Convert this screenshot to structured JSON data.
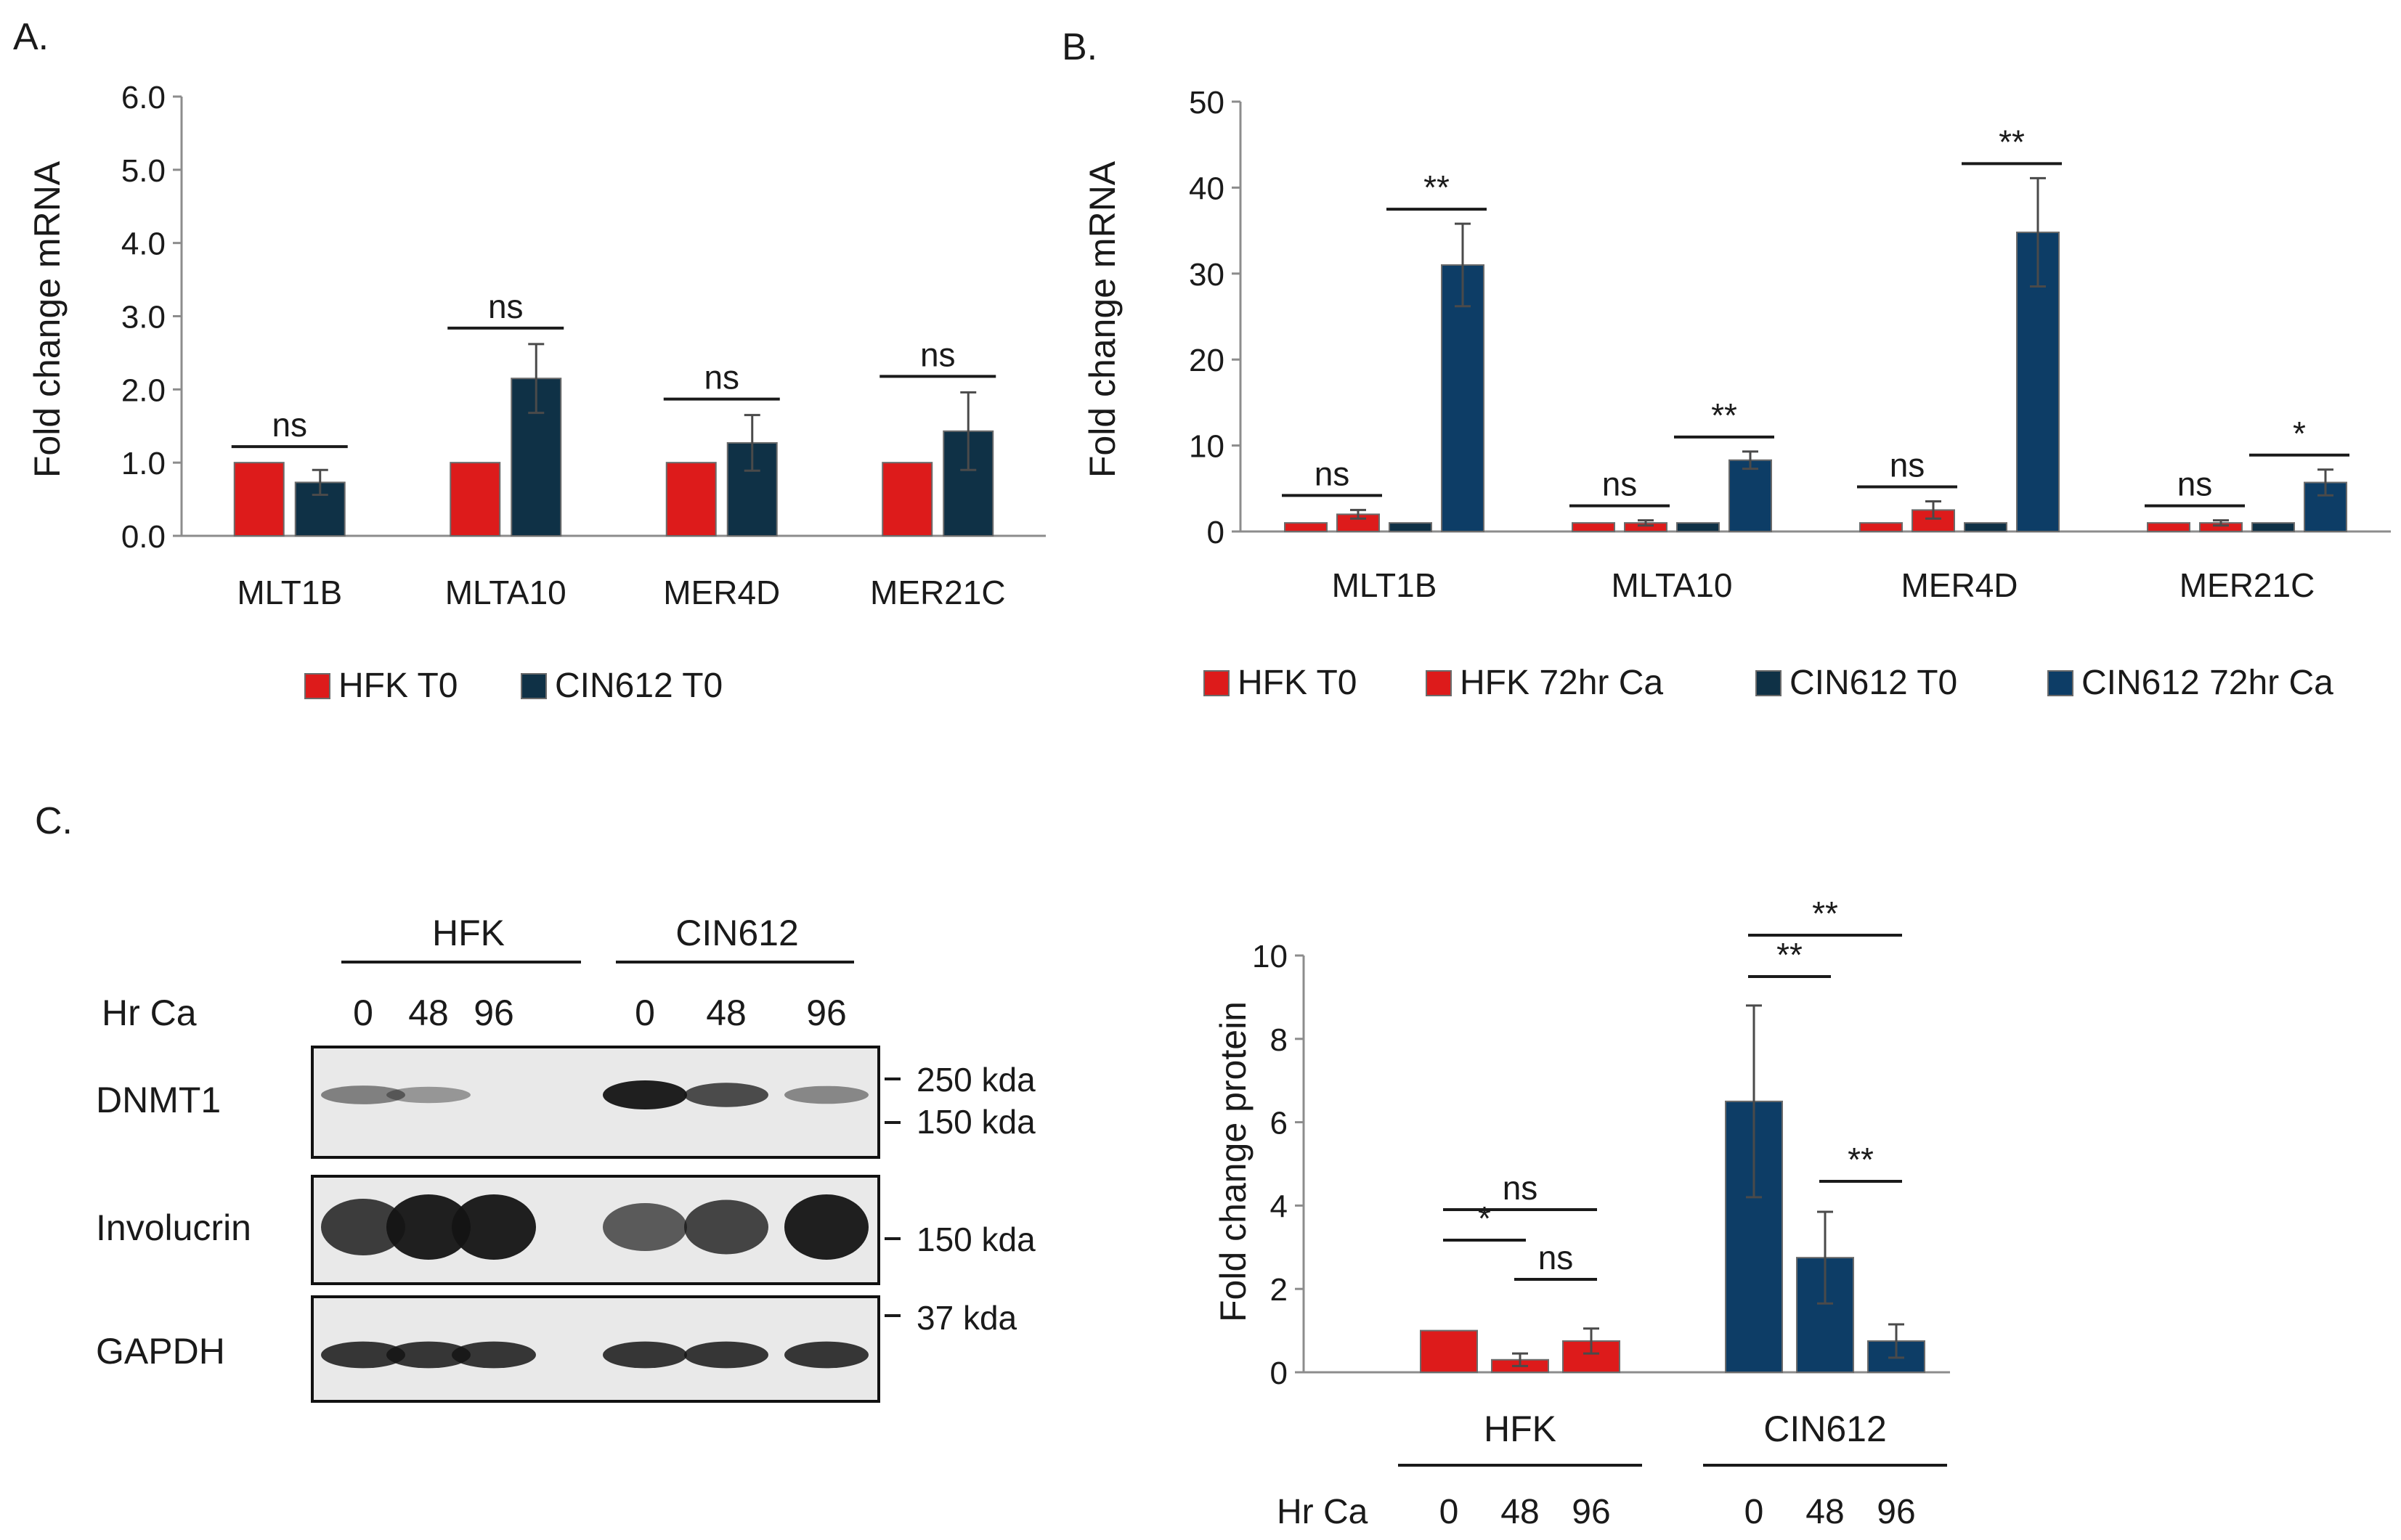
{
  "colors": {
    "red": "#dd1b1b",
    "dark_teal": "#0f3146",
    "navy": "#0d3d66",
    "teal": "#2f5f6f",
    "error_bar": "#4a4a4a",
    "axis": "#8c8c8c",
    "blot_bg": "#e9e9e9",
    "band": "#141414"
  },
  "panels": {
    "a_label": "A.",
    "b_label": "B.",
    "c_label": "C."
  },
  "chart_data": [
    {
      "id": "A",
      "type": "bar",
      "ylabel": "Fold change mRNA",
      "ylim": [
        0,
        6
      ],
      "yticks": [
        "0.0",
        "1.0",
        "2.0",
        "3.0",
        "4.0",
        "5.0",
        "6.0"
      ],
      "categories": [
        "MLT1B",
        "MLTA10",
        "MER4D",
        "MER21C"
      ],
      "series": [
        {
          "name": "HFK T0",
          "values": [
            1.0,
            1.0,
            1.0,
            1.0
          ],
          "errors": [
            0.0,
            0.0,
            0.0,
            0.0
          ]
        },
        {
          "name": "CIN612 T0",
          "values": [
            0.73,
            2.15,
            1.27,
            1.43
          ],
          "errors": [
            0.17,
            0.47,
            0.38,
            0.53
          ]
        }
      ],
      "significance": [
        {
          "category": 0,
          "from": 0,
          "to": 1,
          "label": "ns"
        },
        {
          "category": 1,
          "from": 0,
          "to": 1,
          "label": "ns"
        },
        {
          "category": 2,
          "from": 0,
          "to": 1,
          "label": "ns"
        },
        {
          "category": 3,
          "from": 0,
          "to": 1,
          "label": "ns"
        }
      ],
      "legend_position": "bottom"
    },
    {
      "id": "B",
      "type": "bar",
      "ylabel": "Fold change mRNA",
      "ylim": [
        0,
        50
      ],
      "yticks": [
        "0",
        "10",
        "20",
        "30",
        "40",
        "50"
      ],
      "categories": [
        "MLT1B",
        "MLTA10",
        "MER4D",
        "MER21C"
      ],
      "series": [
        {
          "name": "HFK T0",
          "values": [
            1.0,
            1.0,
            1.0,
            1.0
          ],
          "errors": [
            0.0,
            0.0,
            0.0,
            0.0
          ]
        },
        {
          "name": "HFK 72hr Ca",
          "values": [
            2.0,
            1.0,
            2.5,
            1.0
          ],
          "errors": [
            0.5,
            0.3,
            1.0,
            0.3
          ]
        },
        {
          "name": "CIN612 T0",
          "values": [
            1.0,
            1.0,
            1.0,
            1.0
          ],
          "errors": [
            0.0,
            0.0,
            0.0,
            0.0
          ]
        },
        {
          "name": "CIN612 72hr Ca",
          "values": [
            31.0,
            8.3,
            34.8,
            5.7
          ],
          "errors": [
            4.8,
            1.0,
            6.3,
            1.5
          ]
        }
      ],
      "significance": [
        {
          "category": 0,
          "from": 0,
          "to": 1,
          "label": "ns"
        },
        {
          "category": 0,
          "from": 2,
          "to": 3,
          "label": "**"
        },
        {
          "category": 1,
          "from": 0,
          "to": 1,
          "label": "ns"
        },
        {
          "category": 1,
          "from": 2,
          "to": 3,
          "label": "**"
        },
        {
          "category": 2,
          "from": 0,
          "to": 1,
          "label": "ns"
        },
        {
          "category": 2,
          "from": 2,
          "to": 3,
          "label": "**"
        },
        {
          "category": 3,
          "from": 0,
          "to": 1,
          "label": "ns"
        },
        {
          "category": 3,
          "from": 2,
          "to": 3,
          "label": "*"
        }
      ],
      "legend_position": "bottom"
    },
    {
      "id": "C",
      "type": "bar",
      "ylabel": "Fold change protein",
      "ylim": [
        0,
        10
      ],
      "yticks": [
        "0",
        "2",
        "4",
        "6",
        "8",
        "10"
      ],
      "groups": [
        {
          "name": "HFK",
          "bars": [
            "0",
            "48",
            "96"
          ],
          "values": [
            1.0,
            0.3,
            0.75
          ],
          "errors": [
            0.0,
            0.15,
            0.3
          ]
        },
        {
          "name": "CIN612",
          "bars": [
            "0",
            "48",
            "96"
          ],
          "values": [
            6.5,
            2.75,
            0.75
          ],
          "errors": [
            2.3,
            1.1,
            0.4
          ]
        }
      ],
      "xrow_label": "Hr Ca",
      "significance": [
        {
          "group": 0,
          "from": 0,
          "to": 1,
          "label": "*"
        },
        {
          "group": 0,
          "from": 0,
          "to": 2,
          "label": "ns"
        },
        {
          "group": 0,
          "from": 1,
          "to": 2,
          "label": "ns"
        },
        {
          "group": 1,
          "from": 0,
          "to": 1,
          "label": "**"
        },
        {
          "group": 1,
          "from": 0,
          "to": 2,
          "label": "**"
        },
        {
          "group": 1,
          "from": 1,
          "to": 2,
          "label": "**"
        }
      ]
    }
  ],
  "western_blot": {
    "groups": [
      "HFK",
      "CIN612"
    ],
    "hr_ca_label": "Hr Ca",
    "lanes": [
      "0",
      "48",
      "96",
      "0",
      "48",
      "96"
    ],
    "rows": [
      {
        "name": "DNMT1",
        "intensities": [
          0.35,
          0.2,
          0.0,
          1.0,
          0.7,
          0.3
        ]
      },
      {
        "name": "Involucrin",
        "intensities": [
          0.8,
          1.0,
          1.0,
          0.6,
          0.75,
          1.0
        ]
      },
      {
        "name": "GAPDH",
        "intensities": [
          0.85,
          0.85,
          0.85,
          0.85,
          0.85,
          0.85
        ]
      }
    ],
    "markers": [
      "250 kda",
      "150 kda",
      "150 kda",
      "37 kda"
    ]
  }
}
